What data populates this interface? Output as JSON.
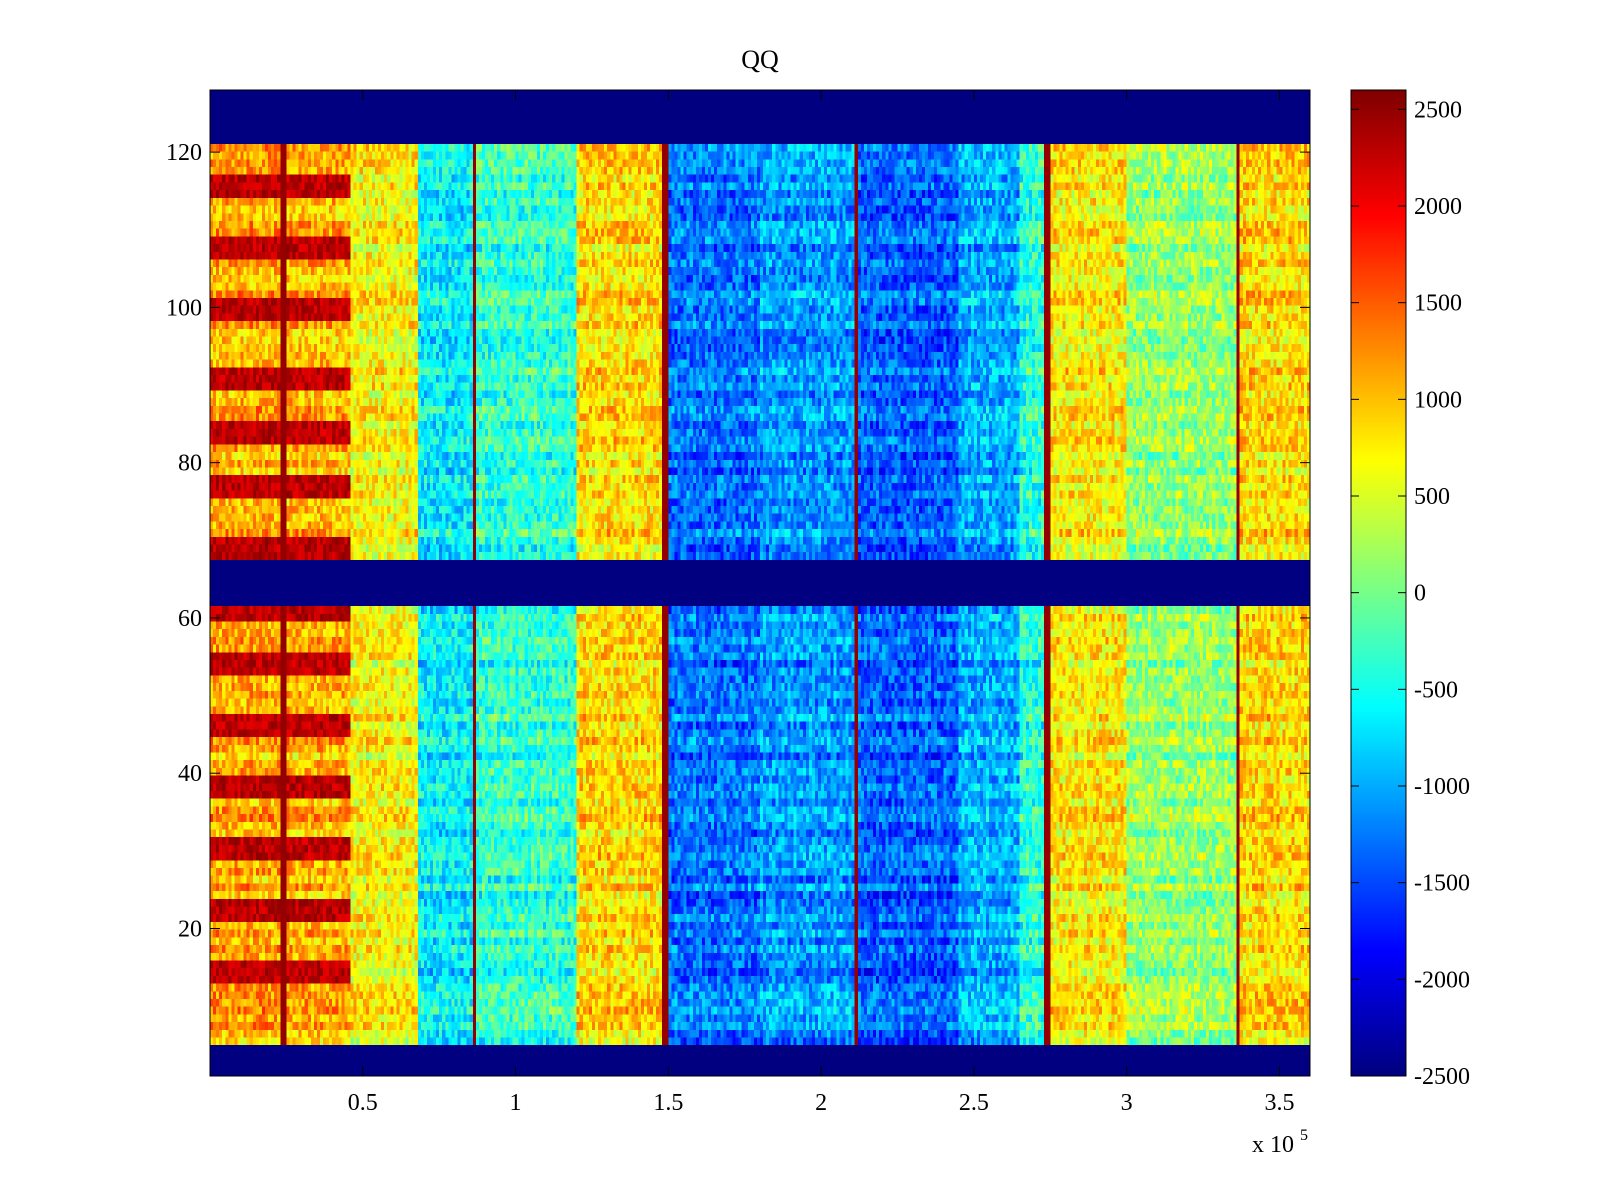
{
  "chart_data": {
    "type": "heatmap",
    "title": "QQ",
    "xlabel": "",
    "ylabel": "",
    "x_multiplier_label": "x 10",
    "x_multiplier_exponent": "5",
    "xlim": [
      0,
      3.6
    ],
    "ylim": [
      1,
      128
    ],
    "clim": [
      -2500,
      2600
    ],
    "colormap": "jet",
    "xticks": [
      {
        "value": 0.5,
        "label": "0.5"
      },
      {
        "value": 1,
        "label": "1"
      },
      {
        "value": 1.5,
        "label": "1.5"
      },
      {
        "value": 2,
        "label": "2"
      },
      {
        "value": 2.5,
        "label": "2.5"
      },
      {
        "value": 3,
        "label": "3"
      },
      {
        "value": 3.5,
        "label": "3.5"
      }
    ],
    "yticks": [
      {
        "value": 20,
        "label": "20"
      },
      {
        "value": 40,
        "label": "40"
      },
      {
        "value": 60,
        "label": "60"
      },
      {
        "value": 80,
        "label": "80"
      },
      {
        "value": 100,
        "label": "100"
      },
      {
        "value": 120,
        "label": "120"
      }
    ],
    "colorbar_ticks": [
      {
        "value": 2500,
        "label": "2500"
      },
      {
        "value": 2000,
        "label": "2000"
      },
      {
        "value": 1500,
        "label": "1500"
      },
      {
        "value": 1000,
        "label": "1000"
      },
      {
        "value": 500,
        "label": "500"
      },
      {
        "value": 0,
        "label": "0"
      },
      {
        "value": -500,
        "label": "-500"
      },
      {
        "value": -1000,
        "label": "-1000"
      },
      {
        "value": -1500,
        "label": "-1500"
      },
      {
        "value": -2000,
        "label": "-2000"
      },
      {
        "value": -2500,
        "label": "-2500"
      }
    ],
    "empty_row_bands": [
      [
        1,
        4
      ],
      [
        62,
        67
      ],
      [
        122,
        128
      ]
    ],
    "spike_columns_x": [
      0.24,
      0.865,
      1.49,
      2.115,
      2.74,
      3.365
    ],
    "spike_value": 2500,
    "column_segments": [
      {
        "x_start": 0.0,
        "x_end": 0.24,
        "base": 1100
      },
      {
        "x_start": 0.24,
        "x_end": 0.46,
        "base": 1050
      },
      {
        "x_start": 0.46,
        "x_end": 0.68,
        "base": 700
      },
      {
        "x_start": 0.68,
        "x_end": 0.865,
        "base": -650
      },
      {
        "x_start": 0.865,
        "x_end": 1.2,
        "base": -350
      },
      {
        "x_start": 1.2,
        "x_end": 1.49,
        "base": 850
      },
      {
        "x_start": 1.49,
        "x_end": 1.8,
        "base": -1300
      },
      {
        "x_start": 1.8,
        "x_end": 2.115,
        "base": -1100
      },
      {
        "x_start": 2.115,
        "x_end": 2.45,
        "base": -1400
      },
      {
        "x_start": 2.45,
        "x_end": 2.65,
        "base": -1000
      },
      {
        "x_start": 2.65,
        "x_end": 2.74,
        "base": -400
      },
      {
        "x_start": 2.74,
        "x_end": 3.0,
        "base": 750
      },
      {
        "x_start": 3.0,
        "x_end": 3.365,
        "base": 150
      },
      {
        "x_start": 3.365,
        "x_end": 3.6,
        "base": 850
      }
    ],
    "row_stripes": {
      "x_range": [
        0.0,
        0.46
      ],
      "rows": [
        14,
        22,
        30,
        38,
        46,
        54,
        61,
        69,
        77,
        84,
        91,
        100,
        108,
        116
      ],
      "value": 2300
    }
  }
}
